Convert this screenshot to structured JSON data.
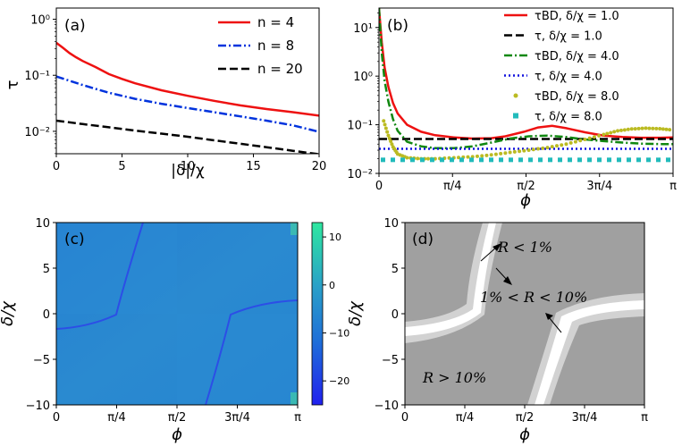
{
  "chart_data": [
    {
      "id": "a",
      "type": "line",
      "panel_label": "(a)",
      "xlabel": "|δ|/χ",
      "ylabel": "τ",
      "xlim": [
        0,
        20
      ],
      "ylim_log10": [
        -2.4,
        0.2
      ],
      "xscale": "linear",
      "yscale": "log",
      "x_ticks": [
        0,
        5,
        10,
        15,
        20
      ],
      "x_tick_labels": [
        "0",
        "5",
        "10",
        "15",
        "20"
      ],
      "y_ticks_log10": [
        -2,
        -1,
        0
      ],
      "y_tick_labels": [
        "10⁻²",
        "10⁻¹",
        "10⁰"
      ],
      "legend_position": "top-right",
      "series": [
        {
          "name": "n = 4",
          "color": "#ee1111",
          "dash": "solid",
          "x": [
            0,
            0.5,
            1,
            1.5,
            2,
            3,
            4,
            5,
            6,
            8,
            10,
            12,
            14,
            16,
            18,
            20
          ],
          "y": [
            0.38,
            0.31,
            0.25,
            0.21,
            0.18,
            0.14,
            0.105,
            0.086,
            0.072,
            0.054,
            0.043,
            0.035,
            0.029,
            0.025,
            0.022,
            0.019
          ]
        },
        {
          "name": "n = 8",
          "color": "#0033dd",
          "dash": "dashdot",
          "x": [
            0,
            1,
            2,
            3,
            4,
            5,
            6,
            8,
            10,
            12,
            14,
            16,
            18,
            20
          ],
          "y": [
            0.095,
            0.08,
            0.067,
            0.057,
            0.049,
            0.043,
            0.038,
            0.031,
            0.026,
            0.022,
            0.0185,
            0.0155,
            0.0128,
            0.0098
          ]
        },
        {
          "name": "n = 20",
          "color": "#000000",
          "dash": "dashed",
          "x": [
            0,
            2,
            4,
            6,
            8,
            10,
            12,
            14,
            16,
            18,
            20
          ],
          "y": [
            0.0155,
            0.0135,
            0.0118,
            0.0103,
            0.0091,
            0.008,
            0.0069,
            0.006,
            0.0052,
            0.0045,
            0.0039
          ]
        }
      ]
    },
    {
      "id": "b",
      "type": "line",
      "panel_label": "(b)",
      "xlabel": "ϕ",
      "ylabel": "",
      "xlim": [
        0,
        3.1416
      ],
      "ylim_log10": [
        -2,
        1.4
      ],
      "xscale": "linear",
      "yscale": "log",
      "x_ticks": [
        0,
        0.7854,
        1.5708,
        2.3562,
        3.1416
      ],
      "x_tick_labels": [
        "0",
        "π/4",
        "π/2",
        "3π/4",
        "π"
      ],
      "y_ticks_log10": [
        -2,
        -1,
        0,
        1
      ],
      "y_tick_labels": [
        "10⁻²",
        "10⁻¹",
        "10⁰",
        "10¹"
      ],
      "legend_position": "top-right",
      "series": [
        {
          "name": "τBD, δ/χ = 1.0",
          "color": "#ee1111",
          "dash": "solid",
          "x": [
            0,
            0.03,
            0.06,
            0.1,
            0.15,
            0.2,
            0.3,
            0.45,
            0.6,
            0.8,
            1.0,
            1.2,
            1.35,
            1.55,
            1.7,
            1.85,
            2.0,
            2.2,
            2.4,
            2.6,
            2.8,
            3.0,
            3.14
          ],
          "y": [
            25,
            5,
            1.5,
            0.6,
            0.28,
            0.17,
            0.1,
            0.072,
            0.061,
            0.055,
            0.052,
            0.053,
            0.058,
            0.072,
            0.088,
            0.095,
            0.085,
            0.07,
            0.06,
            0.056,
            0.054,
            0.054,
            0.055
          ]
        },
        {
          "name": "τ, δ/χ = 1.0",
          "color": "#000000",
          "dash": "dashed",
          "x": [
            0,
            3.1416
          ],
          "y": [
            0.051,
            0.051
          ]
        },
        {
          "name": "τBD, δ/χ = 4.0",
          "color": "#118811",
          "dash": "dashdot",
          "x": [
            0,
            0.03,
            0.06,
            0.1,
            0.15,
            0.2,
            0.3,
            0.45,
            0.6,
            0.8,
            1.0,
            1.2,
            1.4,
            1.6,
            1.8,
            2.0,
            2.2,
            2.4,
            2.6,
            2.8,
            3.0,
            3.14
          ],
          "y": [
            25,
            3,
            0.8,
            0.3,
            0.13,
            0.075,
            0.045,
            0.036,
            0.033,
            0.033,
            0.036,
            0.043,
            0.052,
            0.058,
            0.06,
            0.056,
            0.05,
            0.046,
            0.043,
            0.041,
            0.04,
            0.04
          ]
        },
        {
          "name": "τ, δ/χ = 4.0",
          "color": "#1111dd",
          "dash": "dotted",
          "x": [
            0,
            3.1416
          ],
          "y": [
            0.032,
            0.032
          ]
        },
        {
          "name": "τBD, δ/χ = 8.0",
          "color": "#bbbb22",
          "dash": "dots",
          "x": [
            0.05,
            0.1,
            0.15,
            0.2,
            0.3,
            0.45,
            0.6,
            0.8,
            1.0,
            1.2,
            1.4,
            1.6,
            1.8,
            2.0,
            2.2,
            2.4,
            2.55,
            2.7,
            2.85,
            3.0,
            3.14
          ],
          "y": [
            0.12,
            0.06,
            0.035,
            0.025,
            0.021,
            0.02,
            0.02,
            0.021,
            0.022,
            0.024,
            0.027,
            0.03,
            0.034,
            0.04,
            0.05,
            0.063,
            0.075,
            0.082,
            0.085,
            0.083,
            0.078
          ]
        },
        {
          "name": "τ, δ/χ = 8.0",
          "color": "#22bbbb",
          "dash": "squares",
          "x": [
            0,
            3.1416
          ],
          "y": [
            0.019,
            0.019
          ]
        }
      ]
    },
    {
      "id": "c",
      "type": "heatmap",
      "panel_label": "(c)",
      "xlabel": "ϕ",
      "ylabel": "δ/χ",
      "xlim": [
        0,
        3.1416
      ],
      "ylim": [
        -10,
        10
      ],
      "x_ticks": [
        0,
        0.7854,
        1.5708,
        2.3562,
        3.1416
      ],
      "x_tick_labels": [
        "0",
        "π/4",
        "π/2",
        "3π/4",
        "π"
      ],
      "y_ticks": [
        -10,
        -5,
        0,
        5,
        10
      ],
      "y_tick_labels": [
        "−10",
        "−5",
        "0",
        "5",
        "10"
      ],
      "colorbar_range": [
        -25,
        13
      ],
      "colorbar_ticks": [
        -20,
        -10,
        0,
        10
      ],
      "colorbar_tick_labels": [
        "−20",
        "−10",
        "0",
        "10"
      ],
      "colormap": [
        "#2020ee",
        "#1f6fd8",
        "#2aa0c8",
        "#2ee8a0"
      ]
    },
    {
      "id": "d",
      "type": "region-map",
      "panel_label": "(d)",
      "xlabel": "ϕ",
      "ylabel": "δ/χ",
      "xlim": [
        0,
        3.1416
      ],
      "ylim": [
        -10,
        10
      ],
      "x_ticks": [
        0,
        0.7854,
        1.5708,
        2.3562,
        3.1416
      ],
      "x_tick_labels": [
        "0",
        "π/4",
        "π/2",
        "3π/4",
        "π"
      ],
      "y_ticks": [
        -10,
        -5,
        0,
        5,
        10
      ],
      "y_tick_labels": [
        "−10",
        "−5",
        "0",
        "5",
        "10"
      ],
      "annotations": [
        "R < 1%",
        "1% < R < 10%",
        "R > 10%"
      ],
      "region_colors": {
        "low": "#ffffff",
        "mid": "#d2d2d2",
        "high": "#a0a0a0"
      }
    }
  ]
}
